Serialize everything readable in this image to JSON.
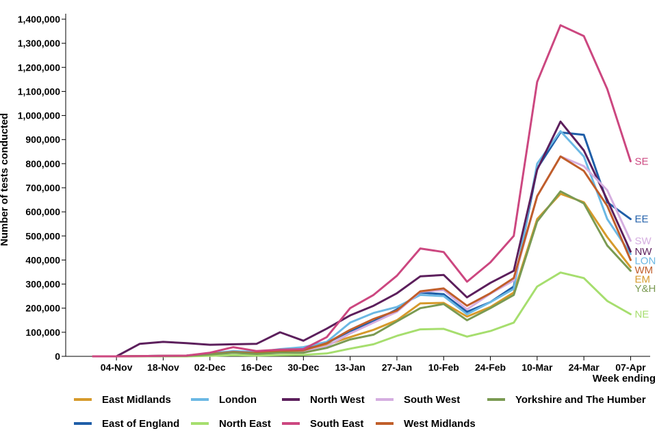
{
  "chart_data": {
    "type": "line",
    "x": [
      "28-Oct",
      "04-Nov",
      "11-Nov",
      "18-Nov",
      "25-Nov",
      "02-Dec",
      "09-Dec",
      "16-Dec",
      "23-Dec",
      "30-Dec",
      "06-Jan",
      "13-Jan",
      "20-Jan",
      "27-Jan",
      "03-Feb",
      "10-Feb",
      "17-Feb",
      "24-Feb",
      "03-Mar",
      "10-Mar",
      "17-Mar",
      "24-Mar",
      "31-Mar",
      "07-Apr"
    ],
    "x_tick_labels": [
      "04-Nov",
      "18-Nov",
      "02-Dec",
      "16-Dec",
      "30-Dec",
      "13-Jan",
      "27-Jan",
      "10-Feb",
      "24-Feb",
      "10-Mar",
      "24-Mar",
      "07-Apr"
    ],
    "xlabel": "Week ending",
    "ylabel": "Number of tests conducted",
    "ylim": [
      0,
      1400000
    ],
    "y_ticks": [
      0,
      100000,
      200000,
      300000,
      400000,
      500000,
      600000,
      700000,
      800000,
      900000,
      1000000,
      1100000,
      1200000,
      1300000,
      1400000
    ],
    "y_tick_labels": [
      "0",
      "100,000",
      "200,000",
      "300,000",
      "400,000",
      "500,000",
      "600,000",
      "700,000",
      "800,000",
      "900,000",
      "1,000,000",
      "1,100,000",
      "1,200,000",
      "1,300,000",
      "1,400,000"
    ],
    "legend_position": "bottom",
    "series": [
      {
        "name": "East Midlands",
        "end_label": "EM",
        "color": "#d69a2b",
        "values": [
          0,
          0,
          1000,
          1000,
          2000,
          10000,
          18000,
          12000,
          18000,
          22000,
          48000,
          80000,
          110000,
          150000,
          220000,
          222000,
          165000,
          205000,
          265000,
          570000,
          675000,
          640000,
          495000,
          370000
        ]
      },
      {
        "name": "East of England",
        "end_label": "EE",
        "color": "#1f5ea8",
        "values": [
          0,
          0,
          1000,
          2000,
          3000,
          12000,
          20000,
          15000,
          25000,
          30000,
          55000,
          105000,
          145000,
          195000,
          265000,
          258000,
          185000,
          225000,
          290000,
          780000,
          930000,
          920000,
          640000,
          570000
        ]
      },
      {
        "name": "London",
        "end_label": "LON",
        "color": "#6bb8e4",
        "values": [
          0,
          0,
          1000,
          2000,
          3000,
          12000,
          22000,
          18000,
          30000,
          38000,
          60000,
          140000,
          180000,
          205000,
          255000,
          250000,
          175000,
          225000,
          280000,
          800000,
          935000,
          830000,
          570000,
          425000
        ]
      },
      {
        "name": "North East",
        "end_label": "NE",
        "color": "#a6de6e",
        "values": [
          0,
          0,
          0,
          0,
          0,
          2000,
          5000,
          3000,
          5000,
          6000,
          12000,
          32000,
          50000,
          85000,
          112000,
          114000,
          82000,
          105000,
          140000,
          290000,
          348000,
          325000,
          230000,
          175000
        ]
      },
      {
        "name": "North West",
        "end_label": "NW",
        "color": "#5c1f5c",
        "values": [
          0,
          0,
          52000,
          60000,
          55000,
          48000,
          50000,
          52000,
          100000,
          65000,
          115000,
          170000,
          210000,
          262000,
          332000,
          338000,
          245000,
          305000,
          355000,
          775000,
          975000,
          855000,
          650000,
          435000
        ]
      },
      {
        "name": "South East",
        "end_label": "SE",
        "color": "#cc4780",
        "values": [
          0,
          0,
          1000,
          2000,
          3000,
          15000,
          38000,
          22000,
          28000,
          30000,
          80000,
          200000,
          255000,
          335000,
          448000,
          433000,
          310000,
          390000,
          500000,
          1140000,
          1375000,
          1330000,
          1110000,
          810000
        ]
      },
      {
        "name": "South West",
        "end_label": "SW",
        "color": "#d5aee0",
        "values": [
          0,
          0,
          1000,
          1000,
          2000,
          8000,
          15000,
          10000,
          15000,
          18000,
          42000,
          95000,
          140000,
          185000,
          268000,
          275000,
          195000,
          260000,
          315000,
          665000,
          830000,
          790000,
          690000,
          480000
        ]
      },
      {
        "name": "West Midlands",
        "end_label": "WM",
        "color": "#c05e2a",
        "values": [
          0,
          0,
          1000,
          2000,
          2000,
          10000,
          18000,
          14000,
          22000,
          25000,
          55000,
          110000,
          155000,
          190000,
          270000,
          282000,
          210000,
          262000,
          325000,
          665000,
          830000,
          770000,
          625000,
          400000
        ]
      },
      {
        "name": "Yorkshire and The Humber",
        "end_label": "Y&H",
        "color": "#7a9a52",
        "values": [
          0,
          0,
          1000,
          1000,
          2000,
          8000,
          15000,
          10000,
          15000,
          15000,
          35000,
          70000,
          90000,
          145000,
          200000,
          217000,
          150000,
          200000,
          255000,
          560000,
          685000,
          635000,
          460000,
          355000
        ]
      }
    ],
    "legend_rows": [
      [
        "East Midlands",
        "London",
        "North West",
        "South West",
        "Yorkshire and The Humber"
      ],
      [
        "East of England",
        "North East",
        "South East",
        "West Midlands"
      ]
    ]
  }
}
